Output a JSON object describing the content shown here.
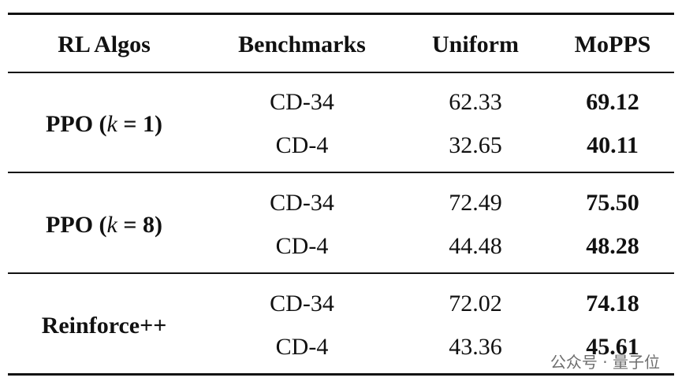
{
  "table": {
    "headers": [
      "RL Algos",
      "Benchmarks",
      "Uniform",
      "MoPPS"
    ],
    "groups": [
      {
        "algo": [
          "PPO (",
          "k",
          " = 1)"
        ],
        "rows": [
          [
            "CD-34",
            "62.33",
            "69.12"
          ],
          [
            "CD-4",
            "32.65",
            "40.11"
          ]
        ]
      },
      {
        "algo": [
          "PPO (",
          "k",
          " = 8)"
        ],
        "rows": [
          [
            "CD-34",
            "72.49",
            "75.50"
          ],
          [
            "CD-4",
            "44.48",
            "48.28"
          ]
        ]
      },
      {
        "algo": [
          "Reinforce++"
        ],
        "rows": [
          [
            "CD-34",
            "72.02",
            "74.18"
          ],
          [
            "CD-4",
            "43.36",
            "45.61"
          ]
        ]
      }
    ]
  },
  "watermark": "公众号 · 量子位"
}
